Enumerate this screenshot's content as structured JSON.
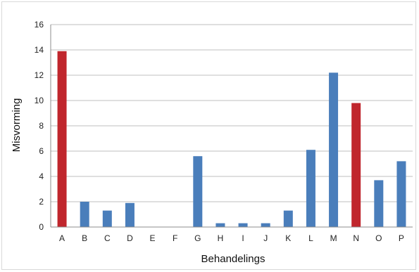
{
  "chart_data": {
    "type": "bar",
    "title": "",
    "xlabel": "Behandelings",
    "ylabel": "Misvorming",
    "categories": [
      "A",
      "B",
      "C",
      "D",
      "E",
      "F",
      "G",
      "H",
      "I",
      "J",
      "K",
      "L",
      "M",
      "N",
      "O",
      "P"
    ],
    "values": [
      13.9,
      2.0,
      1.3,
      1.9,
      0,
      0,
      5.6,
      0.3,
      0.3,
      0.3,
      1.3,
      6.1,
      12.2,
      9.8,
      3.7,
      5.2
    ],
    "highlighted": [
      "A",
      "N"
    ],
    "ylim": [
      0,
      16
    ],
    "yticks": [
      0,
      2,
      4,
      6,
      8,
      10,
      12,
      14,
      16
    ],
    "grid": true,
    "colors": {
      "default": "#4a7ebb",
      "highlight": "#c0262d",
      "grid": "#bfbfbf",
      "axis": "#8c8c8c"
    }
  }
}
